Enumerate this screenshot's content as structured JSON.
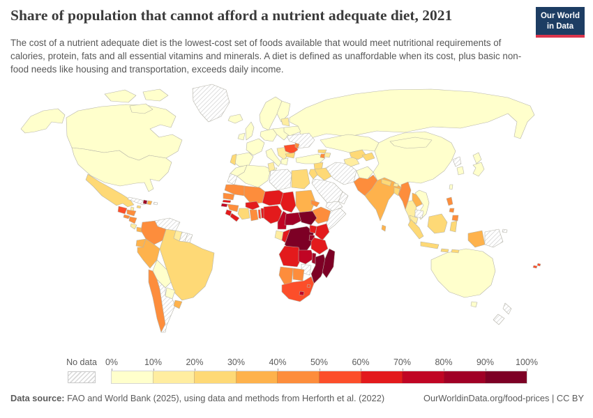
{
  "header": {
    "title": "Share of population that cannot afford a nutrient adequate diet, 2021",
    "subtitle": "The cost of a nutrient adequate diet is the lowest-cost set of foods available that would meet nutritional requirements of calories, protein, fats and all essential vitamins and minerals. A diet is defined as unaffordable when its cost, plus basic non-food needs like housing and transportation, exceeds daily income.",
    "logo_line1": "Our World",
    "logo_line2": "in Data",
    "logo_bg": "#1d3d63",
    "logo_accent": "#dc354c"
  },
  "legend": {
    "no_data_label": "No data",
    "tick_labels": [
      "0%",
      "10%",
      "20%",
      "30%",
      "40%",
      "50%",
      "60%",
      "70%",
      "80%",
      "90%",
      "100%"
    ],
    "colors": [
      "#ffffcc",
      "#ffeda0",
      "#fed976",
      "#feb24c",
      "#fd8d3c",
      "#fc4e2a",
      "#e31a1c",
      "#c00524",
      "#a00026",
      "#7d0025"
    ]
  },
  "footer": {
    "source_label": "Data source:",
    "source_rest": " FAO and World Bank (2025), using data and methods from Herforth et al. (2022)",
    "right_text": "OurWorldinData.org/food-prices | CC BY"
  },
  "chart_data": {
    "type": "choropleth",
    "title": "Share of population that cannot afford a nutrient adequate diet",
    "year": 2021,
    "unit": "% of population",
    "bins": [
      "0-10%",
      "10-20%",
      "20-30%",
      "30-40%",
      "40-50%",
      "50-60%",
      "60-70%",
      "70-80%",
      "80-90%",
      "90-100%",
      "No data"
    ],
    "values": {
      "canada": "0-10%",
      "united-states": "0-10%",
      "greenland": "No data",
      "iceland": "0-10%",
      "mexico": "20-30%",
      "belize": "10-20%",
      "guatemala": "50-60%",
      "honduras": "40-50%",
      "el-salvador": "40-50%",
      "nicaragua": "40-50%",
      "costa-rica": "10-20%",
      "panama": "30-40%",
      "cuba": "No data",
      "jamaica": "20-30%",
      "haiti": "80-90%",
      "dominican-republic": "30-40%",
      "puerto-rico": "No data",
      "venezuela": "No data",
      "colombia": "40-50%",
      "guyana": "10-20%",
      "suriname": "No data",
      "french-guiana": "No data",
      "ecuador": "30-40%",
      "peru": "30-40%",
      "brazil": "20-30%",
      "bolivia": "0-10%",
      "paraguay": "0-10%",
      "uruguay": "30-40%",
      "chile": "40-50%",
      "argentina": "No data",
      "scandinavia": "0-10%",
      "finland": "0-10%",
      "united-kingdom": "0-10%",
      "ireland": "0-10%",
      "denmark": "0-10%",
      "france": "0-10%",
      "spain": "0-10%",
      "portugal": "20-30%",
      "germany": "0-10%",
      "poland": "0-10%",
      "italy": "0-10%",
      "balkans": "10-20%",
      "greece": "0-10%",
      "romania": "50-60%",
      "bulgaria": "20-30%",
      "moldova": "40-50%",
      "ukraine": "No data",
      "belarus": "0-10%",
      "baltics": "10-20%",
      "russia": "0-10%",
      "turkey": "0-10%",
      "georgia": "20-30%",
      "armenia": "40-50%",
      "azerbaijan": "10-20%",
      "syria": "20-30%",
      "iraq": "20-30%",
      "jordan": "20-30%",
      "saudi-arabia": "No data",
      "yemen": "No data",
      "oman": "No data",
      "iran": "No data",
      "afghanistan": "0-10%",
      "turkmenistan": "10-20%",
      "uzbekistan": "20-30%",
      "kyrgyzstan": "20-30%",
      "kazakhstan": "0-10%",
      "pakistan": "40-50%",
      "india": "30-40%",
      "nepal": "20-30%",
      "bhutan": "10-20%",
      "bangladesh": "20-30%",
      "sri-lanka": "30-40%",
      "myanmar": "40-50%",
      "thailand": "10-20%",
      "laos": "30-40%",
      "cambodia": "No data",
      "vietnam": "0-10%",
      "malaysia": "10-20%",
      "china": "0-10%",
      "mongolia": "0-10%",
      "north-korea": "No data",
      "south-korea": "0-10%",
      "japan": "0-10%",
      "taiwan": "0-10%",
      "philippines": "40-50%",
      "indonesia": "20-30%",
      "indonesia-papua": "30-40%",
      "papua-new-guinea": "No data",
      "australia": "0-10%",
      "new-zealand": "No data",
      "fiji": "50-60%",
      "morocco": "0-10%",
      "western-sahara": "No data",
      "algeria": "0-10%",
      "tunisia": "10-20%",
      "libya": "No data",
      "egypt": "20-30%",
      "mauritania": "40-50%",
      "senegal": "40-50%",
      "gambia": "60-70%",
      "guinea-bissau": "70-80%",
      "guinea": "40-50%",
      "sierra-leone": "60-70%",
      "liberia": "60-70%",
      "cote-divoire": "20-30%",
      "ghana": "40-50%",
      "togo": "50-60%",
      "benin": "60-70%",
      "burkina-faso": "60-70%",
      "mali": "40-50%",
      "niger": "60-70%",
      "nigeria": "60-70%",
      "chad": "60-70%",
      "sudan": "30-40%",
      "eritrea": "40-50%",
      "ethiopia": "40-50%",
      "somalia": "No data",
      "cameroon": "70-80%",
      "central-african-republic": "80-90%",
      "south-sudan": "90-100%",
      "gabon": "10-20%",
      "congo": "60-70%",
      "democratic-republic-of-congo": "90-100%",
      "uganda": "60-70%",
      "kenya": "60-70%",
      "rwanda-burundi": "80-90%",
      "tanzania": "60-70%",
      "angola": "60-70%",
      "zambia": "70-80%",
      "malawi": "80-90%",
      "mozambique": "90-100%",
      "zimbabwe": "No data",
      "botswana": "40-50%",
      "namibia": "40-50%",
      "south-africa": "50-60%",
      "lesotho": "70-80%",
      "eswatini": "50-60%",
      "madagascar": "90-100%"
    }
  }
}
